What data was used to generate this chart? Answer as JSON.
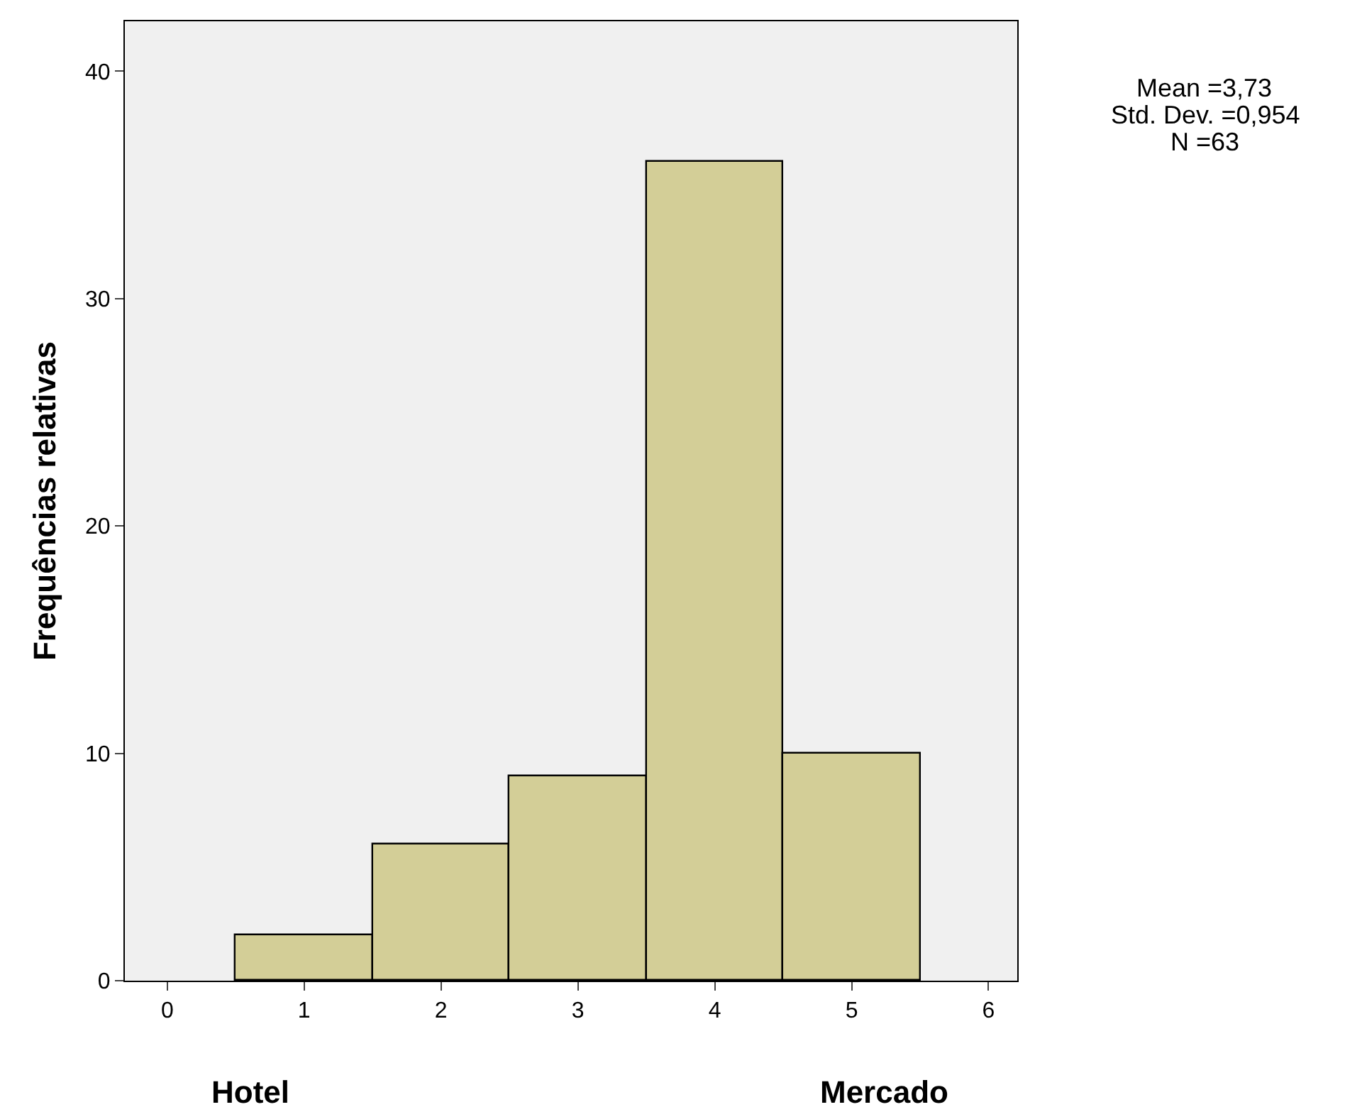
{
  "chart_data": {
    "type": "histogram",
    "ylabel": "Frequências relativas",
    "bins": [
      0.5,
      1.5,
      2.5,
      3.5,
      4.5,
      5.5
    ],
    "values": [
      2,
      6,
      9,
      36,
      10
    ],
    "color": "#d3ce97",
    "xlim": [
      -0.31,
      6.21
    ],
    "xticks": [
      0,
      1,
      2,
      3,
      4,
      5,
      6
    ],
    "ylim": [
      0,
      42.2
    ],
    "yticks": [
      0,
      10,
      20,
      30,
      40
    ],
    "grid": false,
    "annotations": [
      "Hotel",
      "Mercado",
      "Mean =3,73",
      "Std. Dev. =0,954",
      "N =63"
    ]
  }
}
